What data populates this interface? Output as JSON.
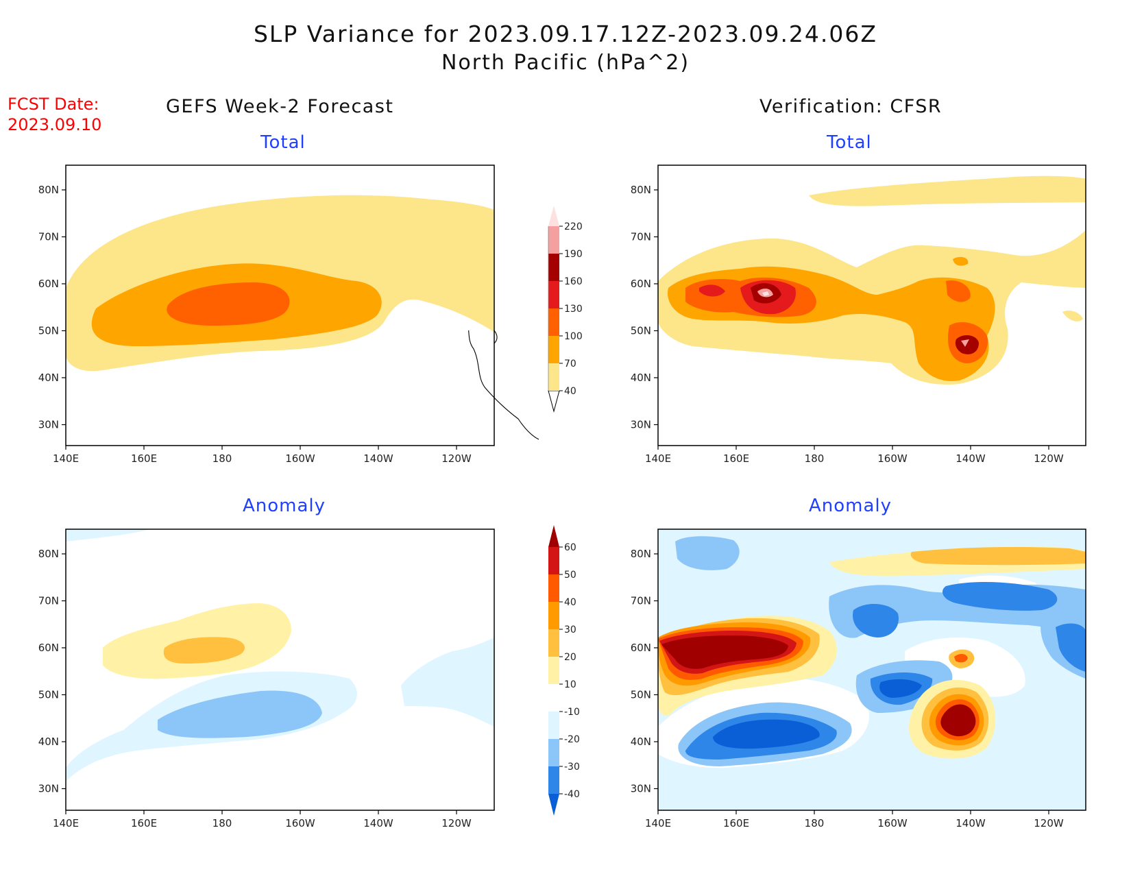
{
  "title": {
    "line1": "SLP Variance for 2023.09.17.12Z-2023.09.24.06Z",
    "line2": "North Pacific (hPa^2)"
  },
  "forecast_date": {
    "label": "FCST Date:",
    "value": "2023.09.10"
  },
  "columns": {
    "left": "GEFS Week-2 Forecast",
    "right": "Verification: CFSR"
  },
  "panels": {
    "gefs_total": "Total",
    "cfsr_total": "Total",
    "gefs_anomaly": "Anomaly",
    "cfsr_anomaly": "Anomaly"
  },
  "axes": {
    "lat_labels": [
      "80N",
      "70N",
      "60N",
      "50N",
      "40N",
      "30N"
    ],
    "lon_labels": [
      "140E",
      "160E",
      "180",
      "160W",
      "140W",
      "120W"
    ]
  },
  "colorbars": {
    "total": {
      "levels": [
        "40",
        "70",
        "100",
        "130",
        "160",
        "190",
        "220"
      ],
      "colors": [
        "#fde58a",
        "#ffa500",
        "#ff6000",
        "#e41a1c",
        "#a50000",
        "#f4a0a0",
        "#fde0e0"
      ]
    },
    "anomaly": {
      "levels": [
        "-40",
        "-30",
        "-20",
        "-10",
        "10",
        "20",
        "30",
        "40",
        "50",
        "60"
      ],
      "colors": [
        "#0a5fd6",
        "#2e86e8",
        "#8cc6f8",
        "#dff5ff",
        "#ffffff",
        "#fff2a6",
        "#ffbf3f",
        "#ff9a00",
        "#ff5a00",
        "#d41515",
        "#a00000"
      ]
    }
  },
  "palette": {
    "total_40": "#fde58a",
    "total_70": "#ffa500",
    "total_100": "#ff6000",
    "total_130": "#e41a1c",
    "total_160": "#a50000",
    "total_190": "#f4a0a0",
    "anom_neg10": "#dff5ff",
    "anom_neg20": "#8cc6f8",
    "anom_neg30": "#2e86e8",
    "anom_neg40": "#0a5fd6",
    "anom_pos10": "#fff2a6",
    "anom_pos20": "#ffbf3f",
    "anom_pos30": "#ff9a00",
    "anom_pos40": "#ff5a00",
    "anom_pos50": "#d41515",
    "anom_pos60": "#a00000"
  }
}
